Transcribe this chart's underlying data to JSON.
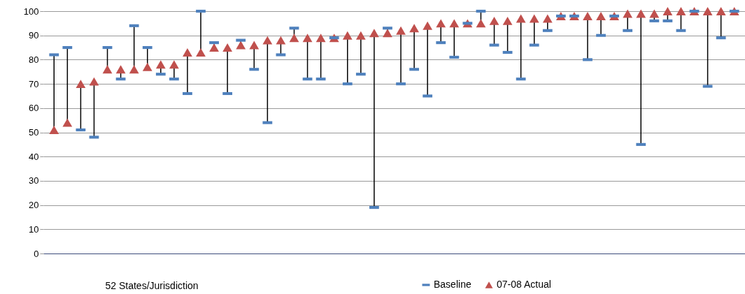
{
  "chart_data": {
    "type": "scatter",
    "xlabel": "52 States/Jurisdiction",
    "categories": [
      null,
      null,
      null,
      null,
      null,
      null,
      null,
      null,
      null,
      null,
      null,
      null,
      null,
      null,
      null,
      null,
      null,
      null,
      null,
      null,
      null,
      null,
      null,
      null,
      null,
      null,
      null,
      null,
      null,
      null,
      null,
      null,
      null,
      null,
      null,
      null,
      null,
      null,
      null,
      null,
      null,
      null,
      null,
      null,
      null,
      null,
      null,
      null,
      null,
      null,
      null,
      null
    ],
    "series": [
      {
        "name": "Baseline",
        "color": "#4f81bd",
        "values": [
          82,
          85,
          51,
          48,
          85,
          72,
          94,
          85,
          74,
          72,
          66,
          100,
          87,
          66,
          88,
          76,
          54,
          82,
          93,
          72,
          72,
          89,
          70,
          74,
          19,
          93,
          70,
          76,
          65,
          87,
          81,
          95,
          100,
          86,
          83,
          72,
          86,
          92,
          98,
          98,
          80,
          90,
          98,
          92,
          45,
          96,
          96,
          92,
          100,
          69,
          89,
          100
        ]
      },
      {
        "name": "07-08 Actual",
        "color": "#c0504d",
        "marker": "triangle",
        "values": [
          51,
          54,
          70,
          71,
          76,
          76,
          76,
          77,
          78,
          78,
          83,
          83,
          85,
          85,
          86,
          86,
          88,
          88,
          89,
          89,
          89,
          89,
          90,
          90,
          91,
          91,
          92,
          93,
          94,
          95,
          95,
          95,
          95,
          96,
          96,
          97,
          97,
          97,
          98,
          98,
          98,
          98,
          98,
          99,
          99,
          99,
          100,
          100,
          100,
          100,
          100,
          100
        ]
      }
    ],
    "ylim": [
      0,
      100
    ],
    "yticks": [
      0,
      10,
      20,
      30,
      40,
      50,
      60,
      70,
      80,
      90,
      100
    ],
    "grid": "y",
    "legend": "bottom right",
    "tick_labels": "y"
  }
}
